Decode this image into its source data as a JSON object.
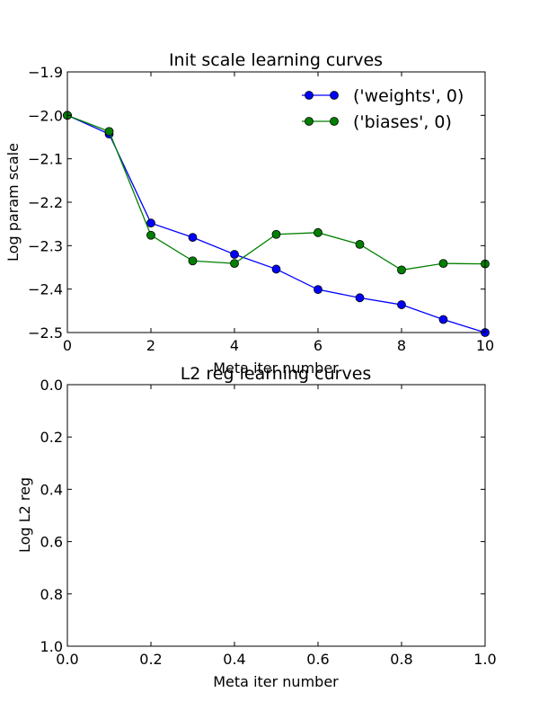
{
  "chart_data": [
    {
      "type": "line",
      "title": "Init scale learning curves",
      "xlabel": "Meta iter number",
      "ylabel": "Log param scale",
      "xlim": [
        0,
        10
      ],
      "ylim": [
        -2.5,
        -1.9
      ],
      "xticks": [
        "0",
        "2",
        "4",
        "6",
        "8",
        "10"
      ],
      "yticks": [
        "−1.9",
        "−2.0",
        "−2.1",
        "−2.2",
        "−2.3",
        "−2.4",
        "−2.5"
      ],
      "grid": false,
      "legend_position": "top-right",
      "x": [
        0,
        1,
        2,
        3,
        4,
        5,
        6,
        7,
        8,
        9,
        10
      ],
      "series": [
        {
          "name": "('weights', 0)",
          "color": "#0000ff",
          "values": [
            -2.0,
            -2.043,
            -2.248,
            -2.281,
            -2.32,
            -2.354,
            -2.401,
            -2.42,
            -2.436,
            -2.47,
            -2.5
          ]
        },
        {
          "name": "('biases', 0)",
          "color": "#008000",
          "values": [
            -2.0,
            -2.037,
            -2.276,
            -2.335,
            -2.341,
            -2.274,
            -2.27,
            -2.297,
            -2.356,
            -2.341,
            -2.342
          ]
        }
      ]
    },
    {
      "type": "line",
      "title": "L2 reg learning curves",
      "xlabel": "Meta iter number",
      "ylabel": "Log L2 reg",
      "xlim": [
        0,
        1
      ],
      "ylim": [
        0,
        1
      ],
      "xticks": [
        "0.0",
        "0.2",
        "0.4",
        "0.6",
        "0.8",
        "1.0"
      ],
      "yticks": [
        "0.0",
        "0.2",
        "0.4",
        "0.6",
        "0.8",
        "1.0"
      ],
      "grid": false,
      "series": []
    }
  ]
}
